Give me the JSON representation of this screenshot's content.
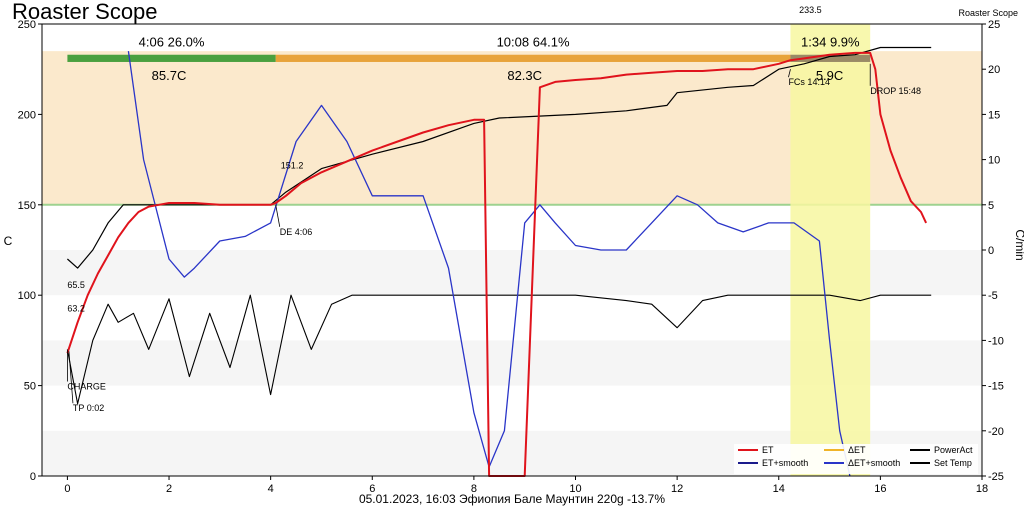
{
  "chart_data": {
    "type": "line",
    "title": "Roaster Scope",
    "corner_label": "Roaster Scope",
    "subtitle": "05.01.2023, 16:03 Эфиопия Бале Маунтин   220g   -13.7%",
    "xlabel": "",
    "ylabel": "C",
    "y2label": "C/min",
    "xlim": [
      -0.5,
      18
    ],
    "ylim": [
      0,
      250
    ],
    "y2lim": [
      -25,
      25
    ],
    "xticks": [
      "0",
      "2",
      "4",
      "6",
      "8",
      "10",
      "12",
      "14",
      "16",
      "18"
    ],
    "yticks": [
      "0",
      "50",
      "100",
      "150",
      "200",
      "250"
    ],
    "y2ticks": [
      "-25",
      "-20",
      "-15",
      "-10",
      "-5",
      "0",
      "5",
      "10",
      "15",
      "20",
      "25"
    ],
    "colors": {
      "et": "#e0131c",
      "et_smooth": "#1a1a8c",
      "delta_et": "#f0b428",
      "delta_et_smooth": "#2a35c8",
      "power": "#000000",
      "set_temp": "#000000",
      "phase_dry": "#4aa03f",
      "phase_maillard": "#e8a33a",
      "phase_dev": "#9a8a66",
      "band": "#fbe9cc",
      "highlight": "#f7f7a0"
    },
    "legend": {
      "placement": "bottom-right",
      "entries": [
        "ET",
        "ET+smooth",
        "ΔET",
        "ΔET+smooth",
        "PowerAct",
        "Set Temp"
      ]
    },
    "phases": [
      {
        "label": "4:06  26.0%",
        "x0": 0,
        "x1": 4.1
      },
      {
        "label": "10:08  64.1%",
        "x0": 4.1,
        "x1": 14.23
      },
      {
        "label": "1:34  9.9%",
        "x0": 14.23,
        "x1": 15.8
      }
    ],
    "phase_temps": [
      {
        "label": "85.7C",
        "x": 2.0
      },
      {
        "label": "82.3C",
        "x": 9.0
      },
      {
        "label": "5.9C",
        "x": 15.0
      }
    ],
    "events": [
      {
        "label": "CHARGE",
        "x": 0.0,
        "y": 70
      },
      {
        "label": "TP 0:02",
        "x": 0.03,
        "y": 69
      },
      {
        "label": "DE 4:06",
        "x": 4.1,
        "y": 150
      },
      {
        "label": "FCs 14:14",
        "x": 14.23,
        "y": 225
      },
      {
        "label": "DROP 15:48",
        "x": 15.8,
        "y": 228
      }
    ],
    "point_labels": [
      {
        "label": "65.5",
        "x": 0.0,
        "y": 104
      },
      {
        "label": "63.2",
        "x": 0.0,
        "y": 91
      },
      {
        "label": "151.2",
        "x": 4.2,
        "y": 170
      },
      {
        "label": "233.5",
        "x": 14.4,
        "y": 256
      }
    ],
    "highlight_range": [
      14.23,
      15.8
    ],
    "series": [
      {
        "name": "ET",
        "axis": "left",
        "x": [
          0,
          0.2,
          0.4,
          0.6,
          0.8,
          1.0,
          1.2,
          1.4,
          1.6,
          1.8,
          2.0,
          2.5,
          3.0,
          3.5,
          4.0,
          4.1,
          4.3,
          4.6,
          5.0,
          5.5,
          6.0,
          6.5,
          7.0,
          7.5,
          8.0,
          8.2,
          8.3,
          8.5,
          8.8,
          9.0,
          9.3,
          9.6,
          10.0,
          10.5,
          11.0,
          11.5,
          12.0,
          12.5,
          13.0,
          13.5,
          14.0,
          14.23,
          14.5,
          15.0,
          15.5,
          15.8,
          15.9,
          16.0,
          16.2,
          16.4,
          16.6,
          16.8,
          16.9
        ],
        "y": [
          68,
          85,
          100,
          112,
          122,
          132,
          140,
          146,
          149,
          150,
          151,
          151,
          150,
          150,
          150,
          151,
          155,
          162,
          168,
          174,
          180,
          185,
          190,
          194,
          197,
          197,
          0,
          0,
          0,
          0,
          215,
          218,
          219,
          220,
          222,
          223,
          224,
          224,
          225,
          225,
          228,
          230,
          231,
          233,
          234,
          234,
          225,
          200,
          180,
          165,
          152,
          146,
          140
        ]
      },
      {
        "name": "ΔET+smooth",
        "axis": "right",
        "x": [
          1.2,
          1.5,
          2.0,
          2.3,
          2.5,
          3.0,
          3.5,
          4.0,
          4.5,
          5.0,
          5.5,
          6.0,
          7.0,
          7.5,
          8.0,
          8.3,
          8.6,
          9.0,
          9.3,
          9.6,
          10.0,
          10.5,
          11.0,
          11.5,
          12.0,
          12.4,
          12.8,
          13.3,
          13.8,
          14.3,
          14.8,
          15.0,
          15.2,
          15.4
        ],
        "y": [
          22,
          10,
          -1,
          -3,
          -2,
          1,
          1.5,
          3,
          12,
          16,
          12,
          6,
          6,
          -2,
          -18,
          -24,
          -20,
          3,
          5,
          3,
          0.5,
          0,
          0,
          3,
          6,
          5,
          3,
          2,
          3,
          3,
          1,
          -10,
          -20,
          -25
        ]
      },
      {
        "name": "PowerAct",
        "axis": "left",
        "x": [
          0,
          0.2,
          0.5,
          0.8,
          1.0,
          1.3,
          1.6,
          2.0,
          2.4,
          2.8,
          3.2,
          3.6,
          4.0,
          4.4,
          4.8,
          5.2,
          5.6,
          6.0,
          7.0,
          8.0,
          9.0,
          10.0,
          11.0,
          11.5,
          12.0,
          12.5,
          13.0,
          14.0,
          15.0,
          15.6,
          16.0,
          17.0
        ],
        "y": [
          70,
          40,
          75,
          95,
          85,
          90,
          70,
          98,
          55,
          90,
          60,
          100,
          45,
          100,
          70,
          95,
          100,
          100,
          100,
          100,
          100,
          100,
          97,
          95,
          82,
          97,
          100,
          100,
          100,
          97,
          100,
          100
        ]
      },
      {
        "name": "Set Temp",
        "axis": "left",
        "x": [
          0,
          0.2,
          0.5,
          0.8,
          1.1,
          1.2,
          2.0,
          4.0,
          4.3,
          5.0,
          6.0,
          7.0,
          8.0,
          8.5,
          10.0,
          11.0,
          11.8,
          12.0,
          13.0,
          13.5,
          14.0,
          14.5,
          15.0,
          15.5,
          16.0,
          17.0
        ],
        "y": [
          120,
          115,
          125,
          140,
          150,
          150,
          150,
          150,
          157,
          170,
          178,
          185,
          195,
          198,
          200,
          202,
          205,
          212,
          215,
          216,
          225,
          228,
          232,
          233,
          237,
          237
        ]
      }
    ]
  }
}
